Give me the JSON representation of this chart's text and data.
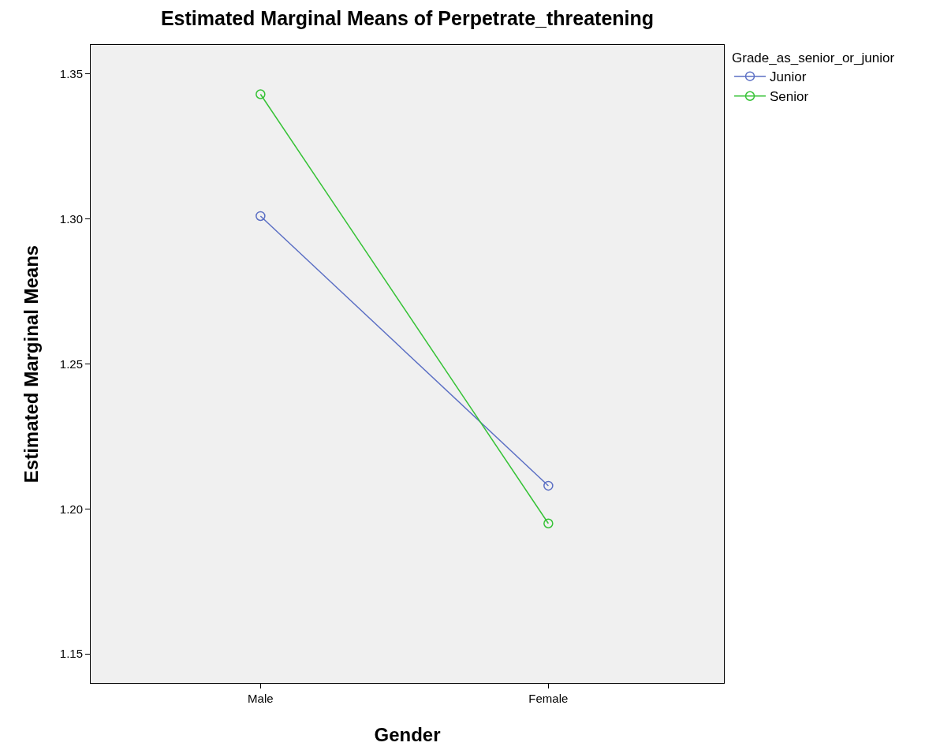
{
  "chart_data": {
    "type": "line",
    "title": "Estimated Marginal Means of Perpetrate_threatening",
    "xlabel": "Gender",
    "ylabel": "Estimated Marginal Means",
    "legend_title": "Grade_as_senior_or_junior",
    "categories": [
      "Male",
      "Female"
    ],
    "series": [
      {
        "name": "Junior",
        "color": "#5b6fc4",
        "values": [
          1.301,
          1.208
        ]
      },
      {
        "name": "Senior",
        "color": "#36c236",
        "values": [
          1.343,
          1.195
        ]
      }
    ],
    "ylim": [
      1.14,
      1.36
    ],
    "yticks": [
      {
        "value": 1.15,
        "label": "1.15"
      },
      {
        "value": 1.2,
        "label": "1.20"
      },
      {
        "value": 1.25,
        "label": "1.25"
      },
      {
        "value": 1.3,
        "label": "1.30"
      },
      {
        "value": 1.35,
        "label": "1.35"
      }
    ],
    "grid": false,
    "legend": "top right",
    "marker": "circle",
    "line_style": "solid"
  }
}
